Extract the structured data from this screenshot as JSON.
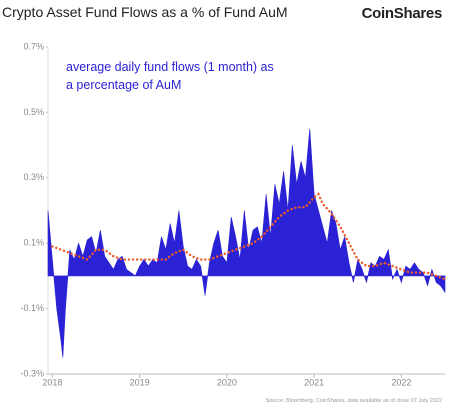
{
  "chart_data": {
    "type": "area",
    "title": "Crypto Asset Fund Flows as a % of Fund AuM",
    "brand": "CoinShares",
    "annotation": "average daily fund flows (1 month) as a percentage of AuM",
    "source": "Source: Bloomberg, CoinShares, data available as of close 07 July 2022",
    "xlim": [
      2017.95,
      2022.5
    ],
    "xticks": [
      2018,
      2019,
      2020,
      2021,
      2022
    ],
    "ylim": [
      -0.3,
      0.7
    ],
    "yticks": [
      {
        "value": 0.7,
        "label": "0.7%"
      },
      {
        "value": 0.5,
        "label": "0.5%"
      },
      {
        "value": 0.3,
        "label": "0.3%"
      },
      {
        "value": 0.1,
        "label": "0.1%"
      },
      {
        "value": -0.1,
        "label": "-0.1%"
      },
      {
        "value": -0.3,
        "label": "-0.3%"
      }
    ],
    "series": [
      {
        "type": "area",
        "color": "#2a22d4",
        "x": [
          2017.95,
          2018.0,
          2018.05,
          2018.1,
          2018.12,
          2018.15,
          2018.2,
          2018.25,
          2018.3,
          2018.35,
          2018.4,
          2018.45,
          2018.5,
          2018.55,
          2018.6,
          2018.65,
          2018.7,
          2018.75,
          2018.8,
          2018.85,
          2018.9,
          2018.95,
          2019.0,
          2019.05,
          2019.1,
          2019.15,
          2019.2,
          2019.25,
          2019.3,
          2019.35,
          2019.4,
          2019.45,
          2019.5,
          2019.55,
          2019.6,
          2019.65,
          2019.7,
          2019.75,
          2019.8,
          2019.85,
          2019.9,
          2019.95,
          2020.0,
          2020.05,
          2020.1,
          2020.15,
          2020.2,
          2020.25,
          2020.3,
          2020.35,
          2020.4,
          2020.45,
          2020.5,
          2020.55,
          2020.6,
          2020.65,
          2020.7,
          2020.75,
          2020.8,
          2020.85,
          2020.9,
          2020.95,
          2021.0,
          2021.05,
          2021.1,
          2021.15,
          2021.2,
          2021.25,
          2021.3,
          2021.35,
          2021.4,
          2021.45,
          2021.5,
          2021.55,
          2021.6,
          2021.65,
          2021.7,
          2021.75,
          2021.8,
          2021.85,
          2021.9,
          2021.95,
          2022.0,
          2022.05,
          2022.1,
          2022.15,
          2022.2,
          2022.25,
          2022.3,
          2022.35,
          2022.4,
          2022.45,
          2022.5
        ],
        "values": [
          0.2,
          0.05,
          -0.1,
          -0.2,
          -0.25,
          -0.1,
          0.08,
          0.05,
          0.1,
          0.06,
          0.11,
          0.12,
          0.07,
          0.14,
          0.06,
          0.04,
          0.02,
          0.05,
          0.06,
          0.02,
          0.01,
          0.0,
          0.03,
          0.05,
          0.03,
          0.05,
          0.04,
          0.12,
          0.08,
          0.16,
          0.1,
          0.2,
          0.09,
          0.03,
          0.02,
          0.05,
          0.03,
          -0.06,
          0.04,
          0.1,
          0.14,
          0.06,
          0.04,
          0.18,
          0.12,
          0.05,
          0.2,
          0.08,
          0.14,
          0.15,
          0.1,
          0.25,
          0.12,
          0.28,
          0.22,
          0.32,
          0.2,
          0.4,
          0.28,
          0.35,
          0.3,
          0.45,
          0.25,
          0.2,
          0.15,
          0.1,
          0.2,
          0.16,
          0.08,
          0.12,
          0.04,
          -0.02,
          0.05,
          0.02,
          -0.02,
          0.04,
          0.03,
          0.06,
          0.05,
          0.08,
          -0.01,
          0.02,
          -0.02,
          0.03,
          0.02,
          0.04,
          0.02,
          0.01,
          -0.03,
          0.02,
          -0.02,
          -0.03,
          -0.05
        ]
      },
      {
        "type": "line",
        "dash": "dotted",
        "color": "#f05a28",
        "x": [
          2018.0,
          2018.1,
          2018.2,
          2018.3,
          2018.4,
          2018.5,
          2018.6,
          2018.7,
          2018.8,
          2018.9,
          2019.0,
          2019.1,
          2019.2,
          2019.3,
          2019.4,
          2019.5,
          2019.6,
          2019.7,
          2019.8,
          2019.9,
          2020.0,
          2020.1,
          2020.2,
          2020.3,
          2020.4,
          2020.5,
          2020.6,
          2020.7,
          2020.8,
          2020.9,
          2021.0,
          2021.05,
          2021.1,
          2021.2,
          2021.3,
          2021.4,
          2021.5,
          2021.6,
          2021.7,
          2021.8,
          2021.9,
          2022.0,
          2022.1,
          2022.2,
          2022.3,
          2022.4,
          2022.5
        ],
        "values": [
          0.09,
          0.08,
          0.07,
          0.06,
          0.05,
          0.08,
          0.08,
          0.06,
          0.05,
          0.05,
          0.05,
          0.05,
          0.05,
          0.05,
          0.07,
          0.08,
          0.06,
          0.05,
          0.05,
          0.06,
          0.07,
          0.08,
          0.09,
          0.1,
          0.12,
          0.15,
          0.18,
          0.2,
          0.21,
          0.21,
          0.24,
          0.25,
          0.22,
          0.19,
          0.15,
          0.1,
          0.05,
          0.03,
          0.03,
          0.04,
          0.03,
          0.02,
          0.01,
          0.01,
          0.01,
          0.0,
          -0.01
        ]
      }
    ]
  }
}
